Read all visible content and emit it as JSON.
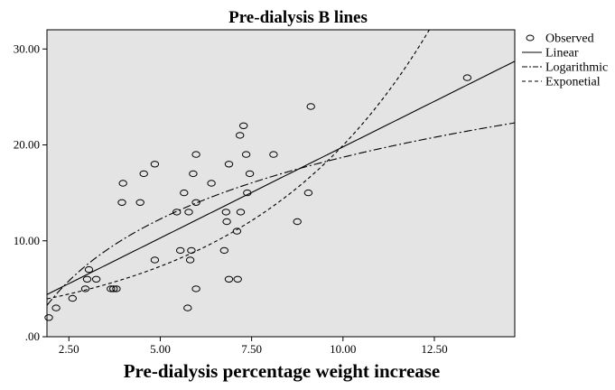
{
  "chart_data": {
    "type": "scatter",
    "title": "Pre-dialysis B lines",
    "xlabel": "Pre-dialysis percentage weight increase",
    "ylabel": "",
    "xlim": [
      1.9,
      14.7
    ],
    "ylim": [
      0,
      32
    ],
    "x_ticks": [
      "2.50",
      "5.00",
      "7.50",
      "10.00",
      "12.50"
    ],
    "x_tick_values": [
      2.5,
      5,
      7.5,
      10,
      12.5
    ],
    "y_ticks": [
      ".00",
      "10.00",
      "20.00",
      "30.00"
    ],
    "y_tick_values": [
      0,
      10,
      20,
      30
    ],
    "grid": false,
    "legend_position": "right",
    "legend": [
      {
        "label": "Observed",
        "style": "circle"
      },
      {
        "label": "Linear",
        "style": "solid"
      },
      {
        "label": "Logarithmic",
        "style": "dashdot"
      },
      {
        "label": "Exponetial",
        "style": "dashed"
      }
    ],
    "colors": {
      "plot_background": "#e4e4e4",
      "marks": "#000000"
    },
    "series": [
      {
        "name": "Observed",
        "kind": "scatter",
        "points": [
          [
            1.95,
            2
          ],
          [
            2.15,
            3
          ],
          [
            2.6,
            4
          ],
          [
            2.95,
            5
          ],
          [
            3.0,
            6
          ],
          [
            3.05,
            7
          ],
          [
            3.25,
            6
          ],
          [
            3.65,
            5
          ],
          [
            3.72,
            5
          ],
          [
            3.8,
            5
          ],
          [
            3.95,
            14
          ],
          [
            3.98,
            16
          ],
          [
            4.45,
            14
          ],
          [
            4.55,
            17
          ],
          [
            4.85,
            18
          ],
          [
            4.85,
            8
          ],
          [
            5.45,
            13
          ],
          [
            5.55,
            9
          ],
          [
            5.65,
            15
          ],
          [
            5.75,
            3
          ],
          [
            5.78,
            13
          ],
          [
            5.82,
            8
          ],
          [
            5.85,
            9
          ],
          [
            5.9,
            17
          ],
          [
            5.98,
            19
          ],
          [
            5.98,
            14
          ],
          [
            5.98,
            5
          ],
          [
            6.4,
            16
          ],
          [
            6.75,
            9
          ],
          [
            6.8,
            13
          ],
          [
            6.82,
            12
          ],
          [
            6.88,
            6
          ],
          [
            6.88,
            18
          ],
          [
            7.1,
            11
          ],
          [
            7.12,
            6
          ],
          [
            7.18,
            21
          ],
          [
            7.2,
            13
          ],
          [
            7.28,
            22
          ],
          [
            7.35,
            19
          ],
          [
            7.38,
            15
          ],
          [
            7.45,
            17
          ],
          [
            8.1,
            19
          ],
          [
            8.75,
            12
          ],
          [
            9.05,
            15
          ],
          [
            9.12,
            24
          ],
          [
            13.4,
            27
          ]
        ]
      },
      {
        "name": "Linear",
        "kind": "line",
        "style": "solid",
        "slope": 1.9,
        "intercept": 0.79
      },
      {
        "name": "Logarithmic",
        "kind": "line",
        "style": "dashdot",
        "a": -2.7,
        "b": 9.3
      },
      {
        "name": "Exponetial",
        "kind": "line",
        "style": "dashed",
        "a": 2.7,
        "b": 0.2
      }
    ]
  }
}
